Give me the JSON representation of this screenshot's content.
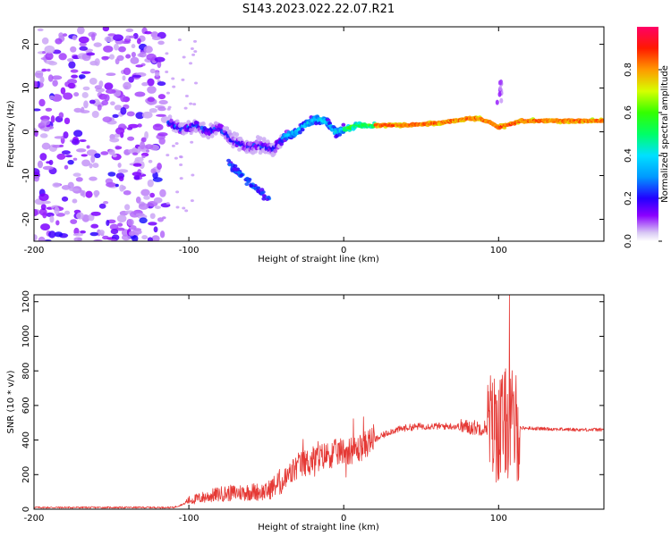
{
  "title": "S143.2023.022.22.07.R21",
  "colors": {
    "snr_line": "#e53935",
    "axis": "#000000",
    "background": "#ffffff"
  },
  "chart_data": [
    {
      "type": "heatmap",
      "xlabel": "Height of straight line (km)",
      "ylabel": "Frequency (Hz)",
      "xlim": [
        -200,
        168
      ],
      "ylim": [
        -25,
        24
      ],
      "xticks": [
        -200,
        -100,
        0,
        100
      ],
      "yticks": [
        -20,
        -10,
        0,
        10,
        20
      ],
      "grid": false,
      "trace_points": [
        [
          -112,
          2
        ],
        [
          -105,
          0.5
        ],
        [
          -95,
          1.5
        ],
        [
          -88,
          0
        ],
        [
          -80,
          1
        ],
        [
          -72,
          -2
        ],
        [
          -62,
          -3.5
        ],
        [
          -55,
          -3
        ],
        [
          -45,
          -4
        ],
        [
          -38,
          -1
        ],
        [
          -30,
          0
        ],
        [
          -25,
          1.5
        ],
        [
          -18,
          3
        ],
        [
          -12,
          2.5
        ],
        [
          -8,
          1
        ],
        [
          -5,
          0
        ],
        [
          0,
          0.5
        ],
        [
          8,
          1.5
        ],
        [
          20,
          1.5
        ],
        [
          40,
          1.5
        ],
        [
          60,
          2
        ],
        [
          80,
          3
        ],
        [
          88,
          3
        ],
        [
          95,
          2
        ],
        [
          100,
          1
        ],
        [
          105,
          1.5
        ],
        [
          115,
          2.5
        ],
        [
          140,
          2.5
        ],
        [
          168,
          2.5
        ]
      ],
      "branch_points": [
        [
          -75,
          -7
        ],
        [
          -60,
          -12
        ],
        [
          -48,
          -15.5
        ]
      ],
      "colorbar": {
        "label": "Normalized spectral amplitude",
        "range": [
          0.0,
          1.0
        ],
        "ticks": [
          "0.0",
          "0.2",
          "0.4",
          "0.6",
          "0.8"
        ],
        "tick_values": [
          0.0,
          0.2,
          0.4,
          0.6,
          0.8
        ]
      }
    },
    {
      "type": "line",
      "xlabel": "Height of straight line (km)",
      "ylabel": "SNR (10 * v/v)",
      "xlim": [
        -200,
        168
      ],
      "ylim": [
        0,
        1240
      ],
      "xticks": [
        -200,
        -100,
        0,
        100
      ],
      "yticks": [
        0,
        200,
        400,
        600,
        800,
        1000,
        1200
      ],
      "grid": false,
      "series": [
        {
          "x": [
            -200,
            -150,
            -110,
            -100,
            -80,
            -60,
            -50,
            -40,
            -30,
            -20,
            -10,
            0,
            10,
            20,
            30,
            40,
            50,
            60,
            70,
            80,
            90,
            95,
            100,
            105,
            110,
            115,
            130,
            150,
            168
          ],
          "values": [
            10,
            10,
            10,
            40,
            70,
            80,
            80,
            130,
            230,
            270,
            300,
            320,
            330,
            400,
            450,
            470,
            480,
            480,
            480,
            475,
            470,
            480,
            470,
            500,
            480,
            470,
            465,
            460,
            460
          ]
        }
      ],
      "annotations_peak": {
        "x": 107,
        "y": 1240
      }
    }
  ]
}
